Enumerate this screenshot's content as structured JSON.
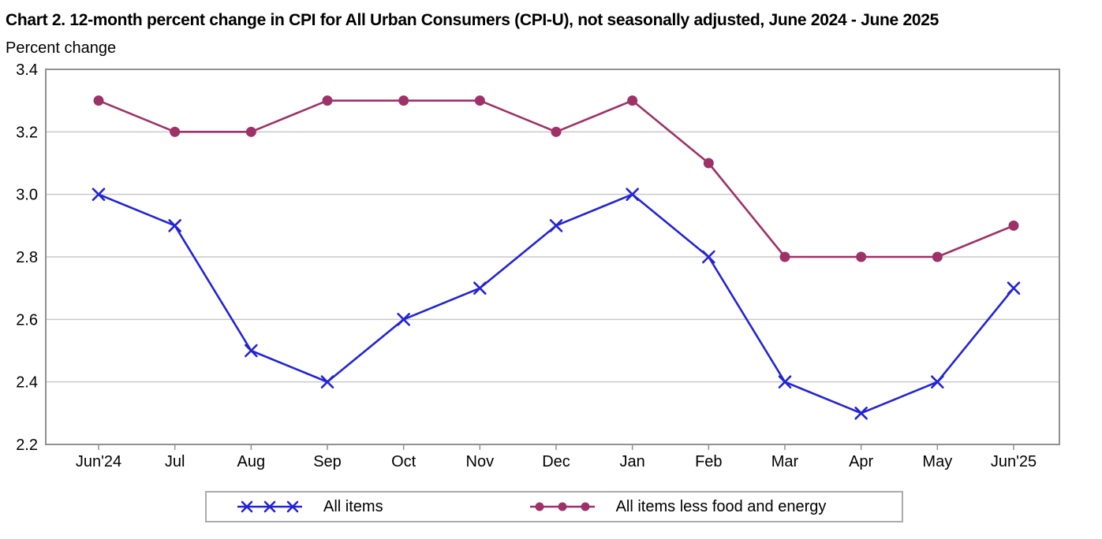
{
  "chart_data": {
    "type": "line",
    "title": "Chart 2. 12-month percent change in CPI for All Urban Consumers (CPI-U), not seasonally adjusted, June 2024 - June 2025",
    "ylabel": "Percent change",
    "xlabel": "",
    "categories": [
      "Jun'24",
      "Jul",
      "Aug",
      "Sep",
      "Oct",
      "Nov",
      "Dec",
      "Jan",
      "Feb",
      "Mar",
      "Apr",
      "May",
      "Jun'25"
    ],
    "series": [
      {
        "name": "All items",
        "marker": "x",
        "color": "#2323d6",
        "values": [
          3.0,
          2.9,
          2.5,
          2.4,
          2.6,
          2.7,
          2.9,
          3.0,
          2.8,
          2.4,
          2.3,
          2.4,
          2.7
        ]
      },
      {
        "name": "All items less food and energy",
        "marker": "circle",
        "color": "#9e3167",
        "values": [
          3.3,
          3.2,
          3.2,
          3.3,
          3.3,
          3.3,
          3.2,
          3.3,
          3.1,
          2.8,
          2.8,
          2.8,
          2.9
        ]
      }
    ],
    "ylim": [
      2.2,
      3.4
    ],
    "yticks": [
      "3.4",
      "3.2",
      "3.0",
      "2.8",
      "2.6",
      "2.4",
      "2.2"
    ],
    "ytick_step": 0.2,
    "grid": "horizontal",
    "gridline_color": "#c9c9c9",
    "border_color": "#919191",
    "legend_position": "bottom"
  }
}
